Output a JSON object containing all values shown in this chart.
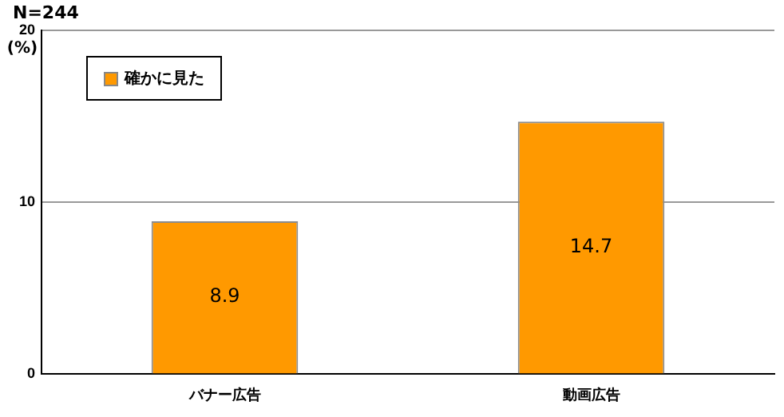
{
  "chart_data": {
    "type": "bar",
    "title": "N=244",
    "ylabel": "(%)",
    "categories": [
      "バナー広告",
      "動画広告"
    ],
    "series": [
      {
        "name": "確かに見た",
        "color": "#ff9900",
        "values": [
          8.9,
          14.7
        ]
      }
    ],
    "ylim": [
      0,
      20
    ],
    "yticks": [
      0,
      10,
      20
    ],
    "grid": "y",
    "legend": "top left",
    "data_labels": true
  }
}
